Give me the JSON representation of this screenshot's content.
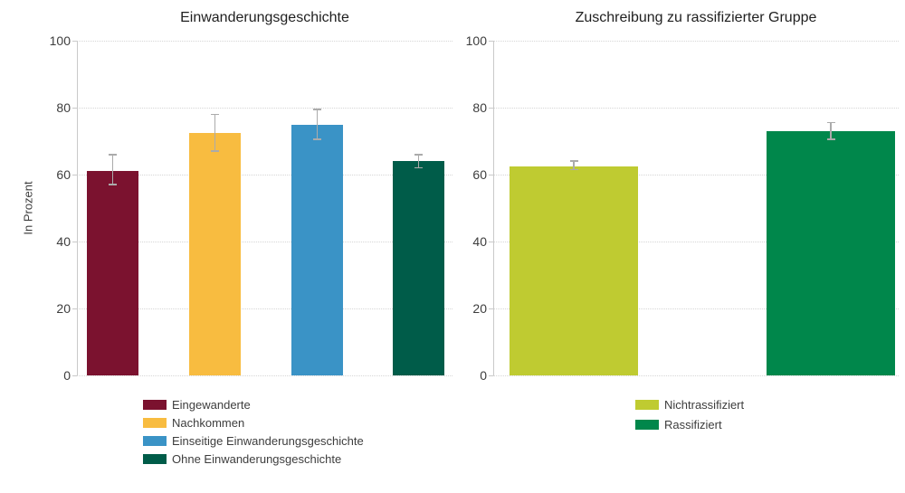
{
  "chart_data": [
    {
      "type": "bar",
      "title": "Einwanderungsgeschichte",
      "ylabel": "In Prozent",
      "ylim": [
        0,
        100
      ],
      "yticks": [
        0,
        20,
        40,
        60,
        80,
        100
      ],
      "grid": "horizontal dotted gridlines at each y tick",
      "legend_position": "bottom-left",
      "error_bars": true,
      "series": [
        {
          "name": "Eingewanderte",
          "value": 61,
          "ci_low": 57,
          "ci_high": 66,
          "color": "#7B122F"
        },
        {
          "name": "Nachkommen",
          "value": 72.5,
          "ci_low": 67,
          "ci_high": 78,
          "color": "#F8BC40"
        },
        {
          "name": "Einseitige Einwanderungsgeschichte",
          "value": 75,
          "ci_low": 70.5,
          "ci_high": 79.5,
          "color": "#3A93C6"
        },
        {
          "name": "Ohne Einwanderungsgeschichte",
          "value": 64,
          "ci_low": 62,
          "ci_high": 66,
          "color": "#005C49"
        }
      ]
    },
    {
      "type": "bar",
      "title": "Zuschreibung zu rassifizierter Gruppe",
      "ylabel": "",
      "ylim": [
        0,
        100
      ],
      "yticks": [
        0,
        20,
        40,
        60,
        80,
        100
      ],
      "grid": "horizontal dotted gridlines at each y tick",
      "legend_position": "bottom-left",
      "error_bars": true,
      "series": [
        {
          "name": "Nichtrassifiziert",
          "value": 62.5,
          "ci_low": 61.5,
          "ci_high": 64,
          "color": "#BFCB31"
        },
        {
          "name": "Rassifiziert",
          "value": 73,
          "ci_low": 70.5,
          "ci_high": 75.5,
          "color": "#00874B"
        }
      ]
    }
  ],
  "colors": {
    "axis": "#C9C9C9",
    "gridline": "#D6D6D6",
    "error_bar": "#ABABAB",
    "text": "#3D3D3D",
    "title_text": "#1F1F1F",
    "background": "#FFFFFF"
  }
}
